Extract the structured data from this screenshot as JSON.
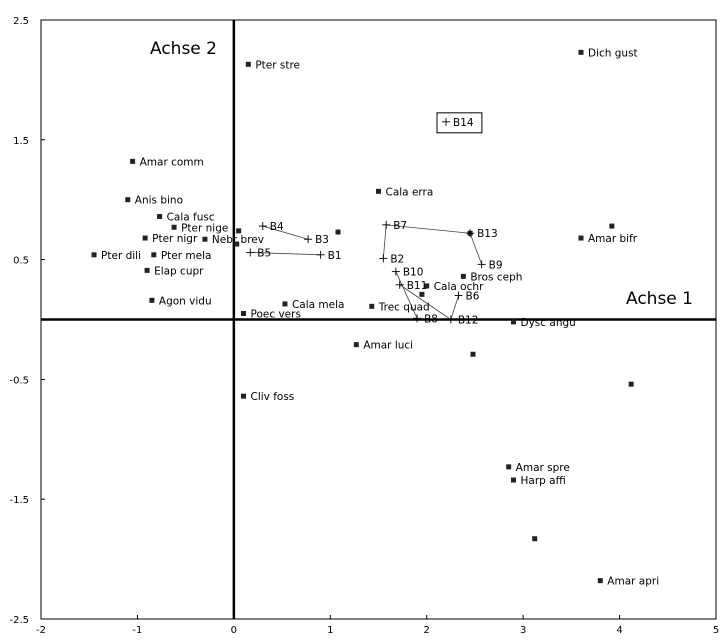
{
  "chart_data": {
    "type": "scatter",
    "title": "",
    "xlabel": "",
    "ylabel": "",
    "xlim": [
      -2,
      5
    ],
    "ylim": [
      -2.5,
      2.5
    ],
    "x_ticks": [
      "-2",
      "-1",
      "0",
      "1",
      "2",
      "3",
      "4",
      "5"
    ],
    "y_ticks": [
      "2.5",
      "1.5",
      "0.5",
      "-0.5",
      "-1.5",
      "-2.5"
    ],
    "axis_titles": {
      "axis1": "Achse 1",
      "axis2": "Achse 2"
    },
    "grid": false,
    "species": [
      {
        "label": "Dich gust",
        "x": 3.6,
        "y": 2.23
      },
      {
        "label": "Pter stre",
        "x": 0.15,
        "y": 2.13
      },
      {
        "label": "Amar comm",
        "x": -1.05,
        "y": 1.32
      },
      {
        "label": "Cala erra",
        "x": 1.5,
        "y": 1.07
      },
      {
        "label": "Anis bino",
        "x": -1.1,
        "y": 1.0
      },
      {
        "label": "Cala fusc",
        "x": -0.77,
        "y": 0.86
      },
      {
        "label": "Pter nige",
        "x": -0.62,
        "y": 0.77
      },
      {
        "label": "Pter nigr",
        "x": -0.92,
        "y": 0.68
      },
      {
        "label": "Nebr brev",
        "x": -0.3,
        "y": 0.67
      },
      {
        "label": "Pter dili",
        "x": -1.45,
        "y": 0.54
      },
      {
        "label": "Pter mela",
        "x": -0.83,
        "y": 0.54
      },
      {
        "label": "Elap cupr",
        "x": -0.9,
        "y": 0.41
      },
      {
        "label": "Agon vidu",
        "x": -0.85,
        "y": 0.16
      },
      {
        "label": "Cala mela",
        "x": 0.53,
        "y": 0.13
      },
      {
        "label": "Poec vers",
        "x": 0.1,
        "y": 0.05
      },
      {
        "label": "Trec quad",
        "x": 1.43,
        "y": 0.11
      },
      {
        "label": "Cala ochr",
        "x": 2.0,
        "y": 0.28
      },
      {
        "label": "Bros ceph",
        "x": 2.38,
        "y": 0.36
      },
      {
        "label": "Amar bifr",
        "x": 3.6,
        "y": 0.68
      },
      {
        "label": "Dysc angu",
        "x": 2.9,
        "y": -0.02
      },
      {
        "label": "Amar luci",
        "x": 1.27,
        "y": -0.21
      },
      {
        "label": "Cliv foss",
        "x": 0.1,
        "y": -0.64
      },
      {
        "label": "Amar spre",
        "x": 2.85,
        "y": -1.23
      },
      {
        "label": "Harp affi",
        "x": 2.9,
        "y": -1.34
      },
      {
        "label": "Amar apri",
        "x": 3.8,
        "y": -2.18
      },
      {
        "label": "",
        "x": 0.05,
        "y": 0.74
      },
      {
        "label": "",
        "x": 0.03,
        "y": 0.63
      },
      {
        "label": "",
        "x": 1.08,
        "y": 0.73
      },
      {
        "label": "",
        "x": 2.45,
        "y": 0.72
      },
      {
        "label": "",
        "x": 3.92,
        "y": 0.78
      },
      {
        "label": "",
        "x": 1.95,
        "y": 0.21
      },
      {
        "label": "",
        "x": 2.48,
        "y": -0.29
      },
      {
        "label": "",
        "x": 4.12,
        "y": -0.54
      },
      {
        "label": "",
        "x": 3.12,
        "y": -1.83
      }
    ],
    "sites": [
      {
        "label": "B14",
        "x": 2.2,
        "y": 1.65,
        "boxed": true
      },
      {
        "label": "B4",
        "x": 0.3,
        "y": 0.78
      },
      {
        "label": "B3",
        "x": 0.77,
        "y": 0.67
      },
      {
        "label": "B5",
        "x": 0.17,
        "y": 0.56
      },
      {
        "label": "B1",
        "x": 0.9,
        "y": 0.54
      },
      {
        "label": "B7",
        "x": 1.58,
        "y": 0.79
      },
      {
        "label": "B13",
        "x": 2.45,
        "y": 0.72
      },
      {
        "label": "B2",
        "x": 1.55,
        "y": 0.51
      },
      {
        "label": "B10",
        "x": 1.68,
        "y": 0.4
      },
      {
        "label": "B9",
        "x": 2.57,
        "y": 0.46
      },
      {
        "label": "B11",
        "x": 1.72,
        "y": 0.29
      },
      {
        "label": "B6",
        "x": 2.33,
        "y": 0.2
      },
      {
        "label": "B8",
        "x": 1.9,
        "y": 0.01
      },
      {
        "label": "B12",
        "x": 2.25,
        "y": 0.0
      }
    ],
    "connections": [
      [
        "B4",
        "B3"
      ],
      [
        "B5",
        "B1"
      ],
      [
        "B7",
        "B13"
      ],
      [
        "B7",
        "B2"
      ],
      [
        "B13",
        "B9"
      ],
      [
        "B10",
        "B8"
      ],
      [
        "B11",
        "B12"
      ],
      [
        "B6",
        "B12"
      ]
    ]
  }
}
